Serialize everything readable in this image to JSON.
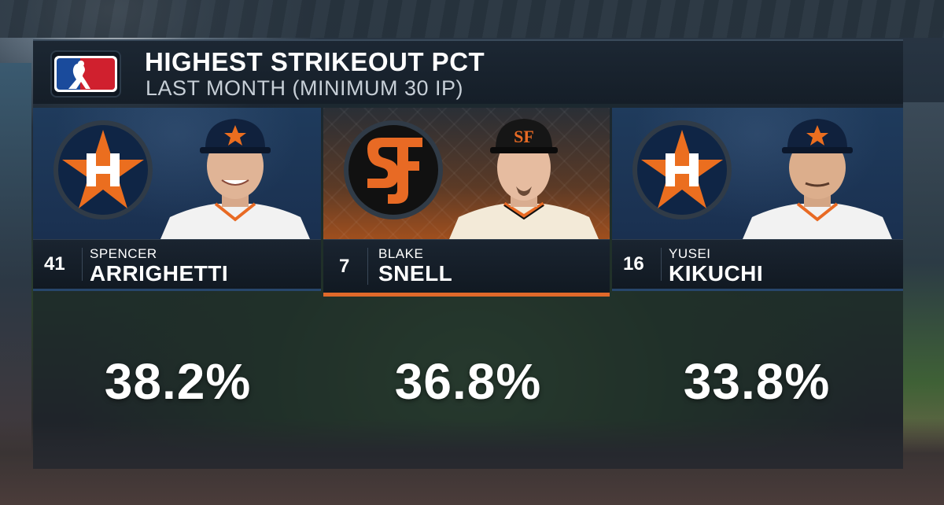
{
  "graphic": {
    "title": "HIGHEST STRIKEOUT PCT",
    "subtitle": "LAST MONTH (MINIMUM 30 IP)",
    "logo_icon": "mlb-logo-icon"
  },
  "players": [
    {
      "jersey": "41",
      "first_name": "SPENCER",
      "last_name": "ARRIGHETTI",
      "team": "astros",
      "team_icon": "astros-logo-icon",
      "value": "38.2%"
    },
    {
      "jersey": "7",
      "first_name": "BLAKE",
      "last_name": "SNELL",
      "team": "giants",
      "team_icon": "giants-logo-icon",
      "value": "36.8%"
    },
    {
      "jersey": "16",
      "first_name": "YUSEI",
      "last_name": "KIKUCHI",
      "team": "astros",
      "team_icon": "astros-logo-icon",
      "value": "33.8%"
    }
  ],
  "colors": {
    "astros_navy": "#0f2545",
    "astros_orange": "#eb6e1f",
    "giants_orange": "#e0692a",
    "mlb_blue": "#1a4b9c",
    "mlb_red": "#d0202e"
  }
}
